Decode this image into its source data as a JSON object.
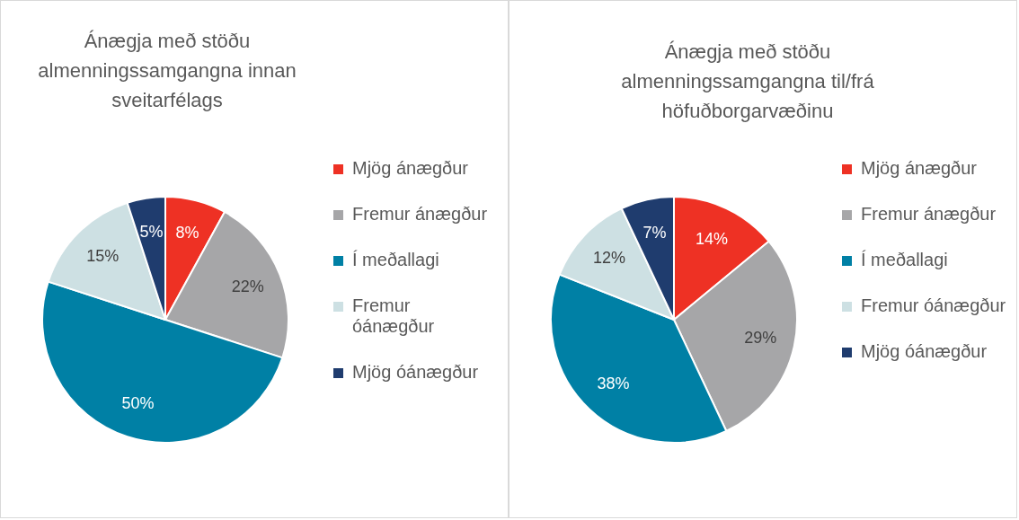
{
  "chart_data": [
    {
      "type": "pie",
      "title": "Ánægja með stöðu almenningssamgangna innan sveitarfélags",
      "categories": [
        "Mjög ánægður",
        "Fremur ánægður",
        "Í meðallagi",
        "Fremur óánægður",
        "Mjög óánægður"
      ],
      "values": [
        8,
        22,
        50,
        15,
        5
      ],
      "value_labels": [
        "8%",
        "22%",
        "50%",
        "15%",
        "5%"
      ],
      "colors": [
        "#ee3124",
        "#a6a6a8",
        "#0080a5",
        "#cde0e3",
        "#1f3c6e"
      ],
      "legend": "right"
    },
    {
      "type": "pie",
      "title": "Ánægja með stöðu almenningssamgangna til/frá höfuðborgarvæðinu",
      "categories": [
        "Mjög ánægður",
        "Fremur ánægður",
        "Í meðallagi",
        "Fremur óánægður",
        "Mjög óánægður"
      ],
      "values": [
        14,
        29,
        38,
        12,
        7
      ],
      "value_labels": [
        "14%",
        "29%",
        "38%",
        "12%",
        "7%"
      ],
      "colors": [
        "#ee3124",
        "#a6a6a8",
        "#0080a5",
        "#cde0e3",
        "#1f3c6e"
      ],
      "legend": "right"
    }
  ]
}
